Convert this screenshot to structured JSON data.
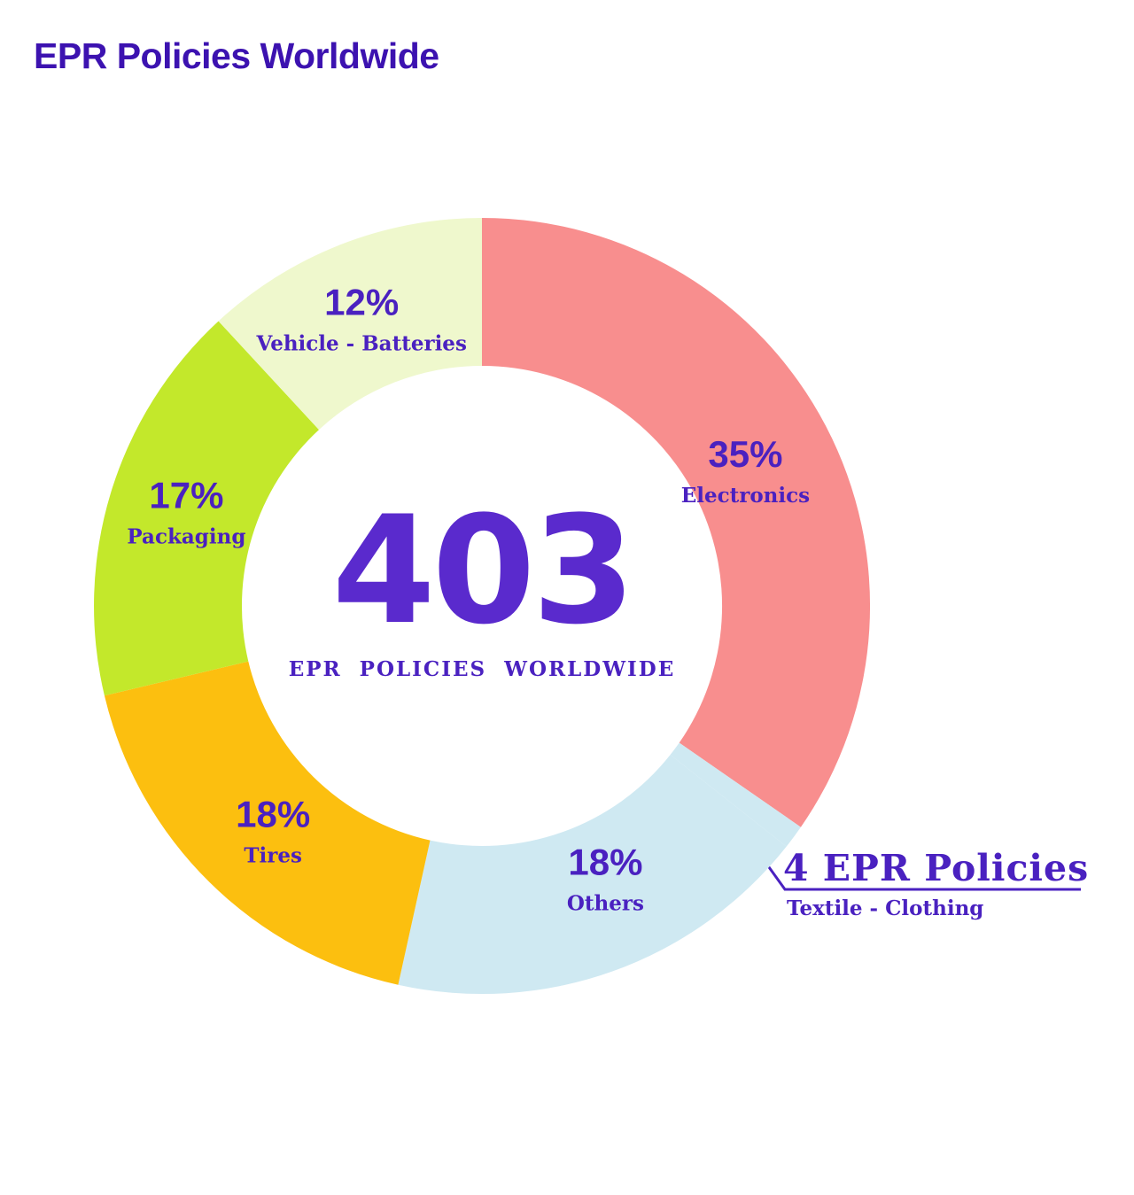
{
  "title": "EPR Policies Worldwide",
  "chart_data": {
    "type": "pie",
    "title": "EPR Policies Worldwide",
    "legend_position": "inside-ring",
    "center": {
      "value": "403",
      "label": "EPR POLICIES WORLDWIDE"
    },
    "segments": [
      {
        "label": "Electronics",
        "pct": 35,
        "weight": 35,
        "color": "#F88E8E"
      },
      {
        "label": "Textile - Clothing",
        "pct": 1,
        "weight": 1,
        "color": "#CFE9F2",
        "callout_value": "4 EPR Policies"
      },
      {
        "label": "Others",
        "pct": 18,
        "weight": 18,
        "color": "#CFE9F2"
      },
      {
        "label": "Tires",
        "pct": 18,
        "weight": 18,
        "color": "#FCBF0F"
      },
      {
        "label": "Packaging",
        "pct": 17,
        "weight": 17,
        "color": "#C3E82B"
      },
      {
        "label": "Vehicle - Batteries",
        "pct": 12,
        "weight": 12,
        "color": "#EFF8CD"
      }
    ],
    "colors": {
      "title": "#3C12B0",
      "label": "#4A21C0",
      "center_value": "#5A2ACD",
      "callout_line": "#4A21C0",
      "background": "#FFFFFF"
    }
  }
}
